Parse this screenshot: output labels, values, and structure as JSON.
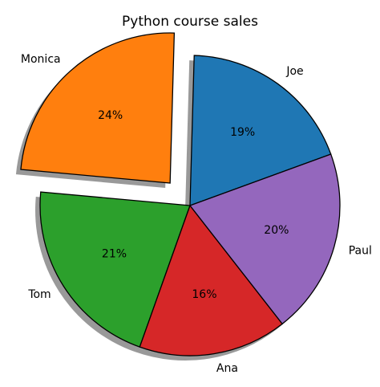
{
  "chart_data": {
    "type": "pie",
    "title": "Python course sales",
    "categories": [
      "Joe",
      "Monica",
      "Tom",
      "Ana",
      "Paul"
    ],
    "values": [
      19,
      24,
      21,
      16,
      20
    ],
    "value_labels": [
      "19%",
      "24%",
      "21%",
      "16%",
      "20%"
    ],
    "colors": [
      "#1f77b4",
      "#ff7f0e",
      "#2ca02c",
      "#d62728",
      "#9467bd"
    ],
    "explode": [
      0,
      0.2,
      0,
      0,
      0
    ],
    "shadow": true
  }
}
